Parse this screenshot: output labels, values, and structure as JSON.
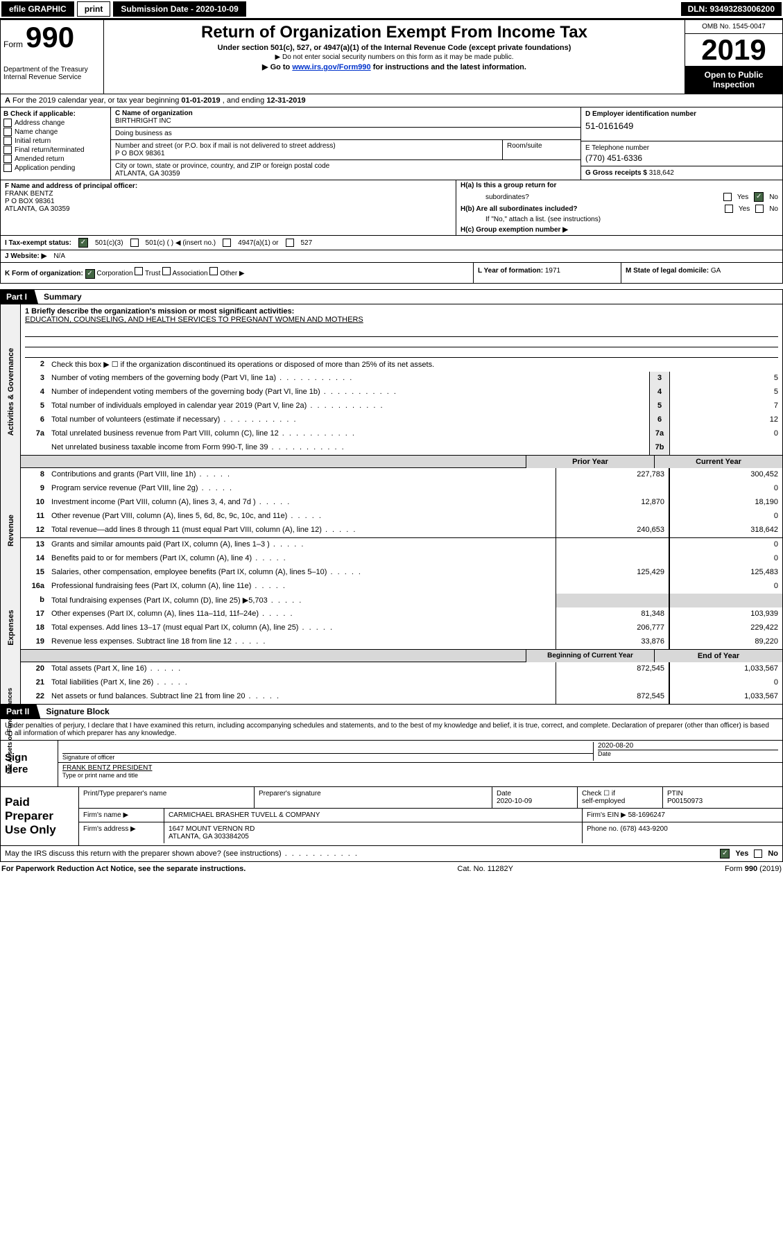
{
  "topbar": {
    "efile": "efile GRAPHIC",
    "print": "print",
    "submission_label": "Submission Date - 2020-10-09",
    "dln": "DLN: 93493283006200"
  },
  "header": {
    "form_word": "Form",
    "form_number": "990",
    "dept": "Department of the Treasury",
    "irs": "Internal Revenue Service",
    "title": "Return of Organization Exempt From Income Tax",
    "sub1": "Under section 501(c), 527, or 4947(a)(1) of the Internal Revenue Code (except private foundations)",
    "sub2": "▶ Do not enter social security numbers on this form as it may be made public.",
    "sub3a": "▶ Go to ",
    "sub3_link": "www.irs.gov/Form990",
    "sub3b": " for instructions and the latest information.",
    "omb": "OMB No. 1545-0047",
    "year": "2019",
    "inspect1": "Open to Public",
    "inspect2": "Inspection"
  },
  "row_a": {
    "prefix": "A",
    "text1": "For the 2019 calendar year, or tax year beginning ",
    "begin": "01-01-2019",
    "text2": " , and ending ",
    "end": "12-31-2019"
  },
  "b": {
    "label": "B Check if applicable:",
    "opts": [
      "Address change",
      "Name change",
      "Initial return",
      "Final return/terminated",
      "Amended return",
      "Application pending"
    ]
  },
  "c": {
    "name_label": "C Name of organization",
    "name": "BIRTHRIGHT INC",
    "dba_label": "Doing business as",
    "dba": "",
    "addr_label": "Number and street (or P.O. box if mail is not delivered to street address)",
    "addr": "P O BOX 98361",
    "room_label": "Room/suite",
    "city_label": "City or town, state or province, country, and ZIP or foreign postal code",
    "city": "ATLANTA, GA  30359"
  },
  "d": {
    "label": "D Employer identification number",
    "value": "51-0161649"
  },
  "e": {
    "label": "E Telephone number",
    "value": "(770) 451-6336"
  },
  "g": {
    "label": "G Gross receipts $",
    "value": "318,642"
  },
  "f": {
    "label": "F Name and address of principal officer:",
    "name": "FRANK BENTZ",
    "addr1": "P O BOX 98361",
    "addr2": "ATLANTA, GA  30359"
  },
  "h": {
    "a": "H(a)  Is this a group return for",
    "a2": "subordinates?",
    "b": "H(b)  Are all subordinates included?",
    "note": "If \"No,\" attach a list. (see instructions)",
    "c": "H(c)  Group exemption number ▶",
    "yes": "Yes",
    "no": "No"
  },
  "i": {
    "label": "I   Tax-exempt status:",
    "o1": "501(c)(3)",
    "o2": "501(c) (   ) ◀ (insert no.)",
    "o3": "4947(a)(1) or",
    "o4": "527"
  },
  "j": {
    "label": "J   Website: ▶",
    "value": "N/A"
  },
  "k": {
    "label": "K Form of organization:",
    "corp": "Corporation",
    "trust": "Trust",
    "assoc": "Association",
    "other": "Other ▶",
    "l_label": "L Year of formation:",
    "l_val": "1971",
    "m_label": "M State of legal domicile:",
    "m_val": "GA"
  },
  "part1": {
    "tab": "Part I",
    "title": "Summary"
  },
  "vtabs": {
    "ag": "Activities & Governance",
    "rev": "Revenue",
    "exp": "Expenses",
    "na": "Net Assets or Fund Balances"
  },
  "summary": {
    "line1_label": "1  Briefly describe the organization's mission or most significant activities:",
    "line1_val": "EDUCATION, COUNSELING, AND HEALTH SERVICES TO PREGNANT WOMEN AND MOTHERS",
    "line2": "Check this box ▶ ☐  if the organization discontinued its operations or disposed of more than 25% of its net assets.",
    "rows_ag": [
      {
        "n": "3",
        "d": "Number of voting members of the governing body (Part VI, line 1a)",
        "box": "3",
        "v": "5"
      },
      {
        "n": "4",
        "d": "Number of independent voting members of the governing body (Part VI, line 1b)",
        "box": "4",
        "v": "5"
      },
      {
        "n": "5",
        "d": "Total number of individuals employed in calendar year 2019 (Part V, line 2a)",
        "box": "5",
        "v": "7"
      },
      {
        "n": "6",
        "d": "Total number of volunteers (estimate if necessary)",
        "box": "6",
        "v": "12"
      },
      {
        "n": "7a",
        "d": "Total unrelated business revenue from Part VIII, column (C), line 12",
        "box": "7a",
        "v": "0"
      },
      {
        "n": "",
        "d": "Net unrelated business taxable income from Form 990-T, line 39",
        "box": "7b",
        "v": ""
      }
    ],
    "hdr_prior": "Prior Year",
    "hdr_curr": "Current Year",
    "rows_rev": [
      {
        "n": "8",
        "d": "Contributions and grants (Part VIII, line 1h)",
        "p": "227,783",
        "c": "300,452"
      },
      {
        "n": "9",
        "d": "Program service revenue (Part VIII, line 2g)",
        "p": "",
        "c": "0"
      },
      {
        "n": "10",
        "d": "Investment income (Part VIII, column (A), lines 3, 4, and 7d )",
        "p": "12,870",
        "c": "18,190"
      },
      {
        "n": "11",
        "d": "Other revenue (Part VIII, column (A), lines 5, 6d, 8c, 9c, 10c, and 11e)",
        "p": "",
        "c": "0"
      },
      {
        "n": "12",
        "d": "Total revenue—add lines 8 through 11 (must equal Part VIII, column (A), line 12)",
        "p": "240,653",
        "c": "318,642"
      }
    ],
    "rows_exp": [
      {
        "n": "13",
        "d": "Grants and similar amounts paid (Part IX, column (A), lines 1–3 )",
        "p": "",
        "c": "0"
      },
      {
        "n": "14",
        "d": "Benefits paid to or for members (Part IX, column (A), line 4)",
        "p": "",
        "c": "0"
      },
      {
        "n": "15",
        "d": "Salaries, other compensation, employee benefits (Part IX, column (A), lines 5–10)",
        "p": "125,429",
        "c": "125,483"
      },
      {
        "n": "16a",
        "d": "Professional fundraising fees (Part IX, column (A), line 11e)",
        "p": "",
        "c": "0"
      },
      {
        "n": "b",
        "d": "Total fundraising expenses (Part IX, column (D), line 25) ▶5,703",
        "p": "",
        "c": ""
      },
      {
        "n": "17",
        "d": "Other expenses (Part IX, column (A), lines 11a–11d, 11f–24e)",
        "p": "81,348",
        "c": "103,939"
      },
      {
        "n": "18",
        "d": "Total expenses. Add lines 13–17 (must equal Part IX, column (A), line 25)",
        "p": "206,777",
        "c": "229,422"
      },
      {
        "n": "19",
        "d": "Revenue less expenses. Subtract line 18 from line 12",
        "p": "33,876",
        "c": "89,220"
      }
    ],
    "hdr_begin": "Beginning of Current Year",
    "hdr_end": "End of Year",
    "rows_na": [
      {
        "n": "20",
        "d": "Total assets (Part X, line 16)",
        "p": "872,545",
        "c": "1,033,567"
      },
      {
        "n": "21",
        "d": "Total liabilities (Part X, line 26)",
        "p": "",
        "c": "0"
      },
      {
        "n": "22",
        "d": "Net assets or fund balances. Subtract line 21 from line 20",
        "p": "872,545",
        "c": "1,033,567"
      }
    ]
  },
  "part2": {
    "tab": "Part II",
    "title": "Signature Block"
  },
  "sig": {
    "perjury": "Under penalties of perjury, I declare that I have examined this return, including accompanying schedules and statements, and to the best of my knowledge and belief, it is true, correct, and complete. Declaration of preparer (other than officer) is based on all information of which preparer has any knowledge.",
    "sign_here": "Sign Here",
    "sig_officer_label": "Signature of officer",
    "date_label": "Date",
    "date_val": "2020-08-20",
    "name_title": "FRANK BENTZ  PRESIDENT",
    "type_label": "Type or print name and title"
  },
  "paid": {
    "label": "Paid Preparer Use Only",
    "h1": "Print/Type preparer's name",
    "h2": "Preparer's signature",
    "h3": "Date",
    "h3v": "2020-10-09",
    "h4a": "Check ☐ if",
    "h4b": "self-employed",
    "h5": "PTIN",
    "h5v": "P00150973",
    "firm_name_l": "Firm's name    ▶",
    "firm_name": "CARMICHAEL BRASHER TUVELL & COMPANY",
    "firm_ein_l": "Firm's EIN ▶",
    "firm_ein": "58-1696247",
    "firm_addr_l": "Firm's address ▶",
    "firm_addr1": "1647 MOUNT VERNON RD",
    "firm_addr2": "ATLANTA, GA  303384205",
    "phone_l": "Phone no.",
    "phone": "(678) 443-9200"
  },
  "discuss": {
    "text": "May the IRS discuss this return with the preparer shown above? (see instructions)",
    "yes": "Yes",
    "no": "No"
  },
  "footer": {
    "l": "For Paperwork Reduction Act Notice, see the separate instructions.",
    "m": "Cat. No. 11282Y",
    "r": "Form 990 (2019)"
  },
  "labels": {
    "b_num": "b",
    "two": "2"
  }
}
